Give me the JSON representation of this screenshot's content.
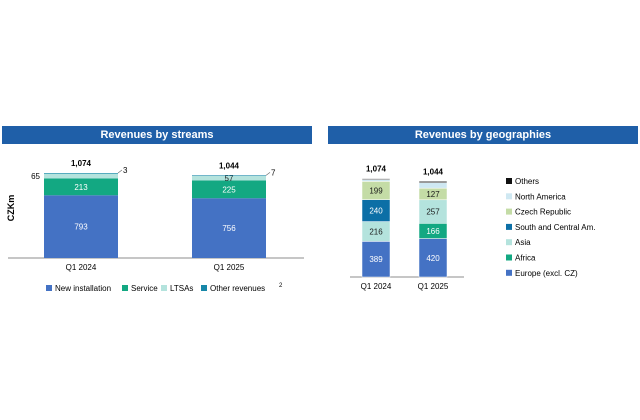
{
  "left_header": "Revenues by streams",
  "right_header": "Revenues by geographies",
  "colors": {
    "header_bg": "#1f5fa8",
    "New installation": "#4472c4",
    "Service": "#13a882",
    "LTSAs": "#b4e3dd",
    "Other revenues": "#1787a8",
    "Europe (excl. CZ)": "#4472c4",
    "Africa": "#13a882",
    "Asia": "#b4e3dd",
    "South and Central Am.": "#0c6fa6",
    "Czech Republic": "#c4dca6",
    "North America": "#cfe8f2",
    "Others": "#111111"
  },
  "chart_data": [
    {
      "type": "bar",
      "stacked": true,
      "title": "Revenues by streams",
      "ylabel": "CZKm",
      "categories": [
        "Q1 2024",
        "Q1 2025"
      ],
      "totals": [
        "1,074",
        "1,044"
      ],
      "series": [
        {
          "name": "New installation",
          "values": [
            793,
            756
          ]
        },
        {
          "name": "Service",
          "values": [
            213,
            225
          ]
        },
        {
          "name": "LTSAs",
          "values": [
            65,
            57
          ]
        },
        {
          "name": "Other revenues",
          "values": [
            3,
            7
          ]
        }
      ],
      "legend_superscript": "2",
      "legend": "bottom"
    },
    {
      "type": "bar",
      "stacked": true,
      "title": "Revenues by geographies",
      "categories": [
        "Q1 2024",
        "Q1 2025"
      ],
      "totals": [
        "1,074",
        "1,044"
      ],
      "series": [
        {
          "name": "Europe (excl. CZ)",
          "values": [
            389,
            420
          ]
        },
        {
          "name": "Africa",
          "values": [
            0,
            166
          ]
        },
        {
          "name": "Asia",
          "values": [
            216,
            257
          ]
        },
        {
          "name": "South and Central Am.",
          "values": [
            240,
            0
          ]
        },
        {
          "name": "Czech Republic",
          "values": [
            199,
            127
          ]
        },
        {
          "name": "North America",
          "values": [
            20,
            60
          ]
        },
        {
          "name": "Others",
          "values": [
            10,
            14
          ]
        }
      ],
      "legend": "right"
    }
  ]
}
